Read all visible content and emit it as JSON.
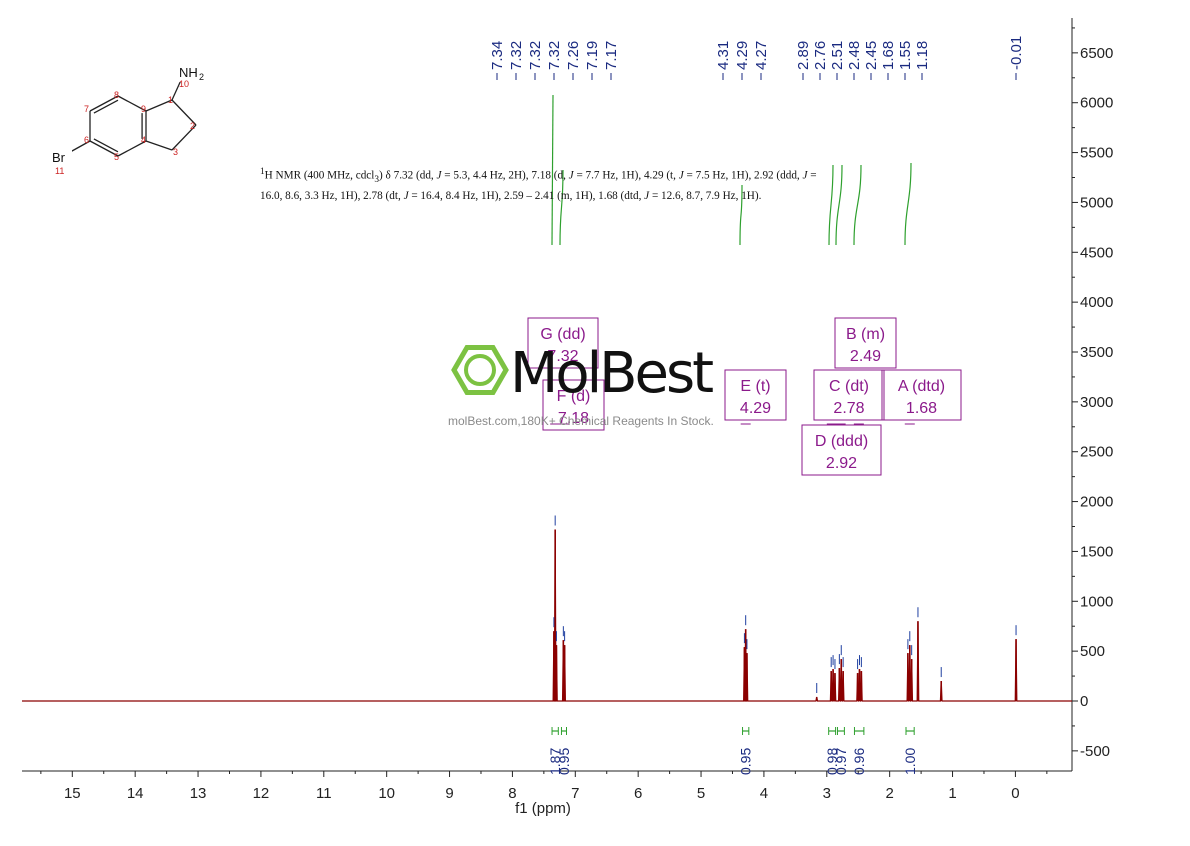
{
  "chart_data": {
    "type": "line",
    "xlabel": "f1 (ppm)",
    "ylabel": "",
    "xlim": [
      15.8,
      -0.9
    ],
    "ylim": [
      -700,
      6800
    ],
    "x_ticks": [
      "15",
      "14",
      "13",
      "12",
      "11",
      "10",
      "9",
      "8",
      "7",
      "6",
      "5",
      "4",
      "3",
      "2",
      "1",
      "0"
    ],
    "y_ticks": [
      "-500",
      "0",
      "500",
      "1000",
      "1500",
      "2000",
      "2500",
      "3000",
      "3500",
      "4000",
      "4500",
      "5000",
      "5500",
      "6000",
      "6500"
    ],
    "peak_labels": {
      "group1": [
        "7.34",
        "7.32",
        "7.32",
        "7.32",
        "7.26",
        "7.19",
        "7.17"
      ],
      "group2": [
        "4.31",
        "4.29",
        "4.27"
      ],
      "group3": [
        "2.89",
        "2.76",
        "2.51",
        "2.48",
        "2.45",
        "1.68",
        "1.55",
        "1.18"
      ],
      "group4": [
        "-0.01"
      ]
    },
    "series": [
      {
        "peaks": [
          {
            "x": 7.34,
            "y": 700
          },
          {
            "x": 7.32,
            "y": 1720
          },
          {
            "x": 7.3,
            "y": 560
          },
          {
            "x": 7.19,
            "y": 610
          },
          {
            "x": 7.17,
            "y": 560
          },
          {
            "x": 4.31,
            "y": 540
          },
          {
            "x": 4.29,
            "y": 720
          },
          {
            "x": 4.27,
            "y": 480
          },
          {
            "x": 3.16,
            "y": 40
          },
          {
            "x": 2.93,
            "y": 300
          },
          {
            "x": 2.9,
            "y": 320
          },
          {
            "x": 2.87,
            "y": 280
          },
          {
            "x": 2.8,
            "y": 330
          },
          {
            "x": 2.77,
            "y": 420
          },
          {
            "x": 2.74,
            "y": 300
          },
          {
            "x": 2.51,
            "y": 280
          },
          {
            "x": 2.48,
            "y": 320
          },
          {
            "x": 2.45,
            "y": 300
          },
          {
            "x": 1.71,
            "y": 480
          },
          {
            "x": 1.68,
            "y": 560
          },
          {
            "x": 1.65,
            "y": 420
          },
          {
            "x": 1.55,
            "y": 800
          },
          {
            "x": 1.18,
            "y": 200
          },
          {
            "x": -0.01,
            "y": 620
          }
        ]
      }
    ],
    "multiplets": [
      {
        "label": "G (dd)",
        "shift": "7.32",
        "x": 7.32
      },
      {
        "label": "F (d)",
        "shift": "7.18",
        "x": 7.18
      },
      {
        "label": "E (t)",
        "shift": "4.29",
        "x": 4.29
      },
      {
        "label": "D (ddd)",
        "shift": "2.92",
        "x": 2.92
      },
      {
        "label": "C (dt)",
        "shift": "2.78",
        "x": 2.78
      },
      {
        "label": "B (m)",
        "shift": "2.49",
        "x": 2.49
      },
      {
        "label": "A (dtd)",
        "shift": "1.68",
        "x": 1.68
      }
    ],
    "integrals": [
      {
        "value": "1.87",
        "x1": 7.37,
        "x2": 7.27
      },
      {
        "value": "0.95",
        "x1": 7.22,
        "x2": 7.14
      },
      {
        "value": "0.95",
        "x1": 4.34,
        "x2": 4.24
      },
      {
        "value": "0.98",
        "x1": 2.97,
        "x2": 2.86
      },
      {
        "value": "0.97",
        "x1": 2.83,
        "x2": 2.72
      },
      {
        "value": "0.96",
        "x1": 2.56,
        "x2": 2.41
      },
      {
        "value": "1.00",
        "x1": 1.74,
        "x2": 1.61
      }
    ]
  },
  "nmr_description": {
    "sup": "1",
    "line1": "H NMR (400 MHz, cdcl",
    "sub": "3",
    "line2": ") δ 7.32 (dd, ",
    "J": "J",
    "seg1": " = 5.3, 4.4 Hz, 2H), 7.18 (d, ",
    "seg2": " = 7.7 Hz, 1H), 4.29 (t, ",
    "seg3": " = 7.5 Hz, 1H), 2.92 (ddd, ",
    "seg4": " = 16.0, 8.6, 3.3 Hz, 1H), 2.78 (dt, ",
    "seg5": " = 16.4, 8.4 Hz, 1H), 2.59 – 2.41 (m, 1H), 1.68 (dtd, ",
    "seg6": " = 12.6, 8.7, 7.9 Hz, 1H)."
  },
  "molecule": {
    "amine_label": "NH",
    "amine_sub": "2",
    "bromine_label": "Br",
    "atom_numbers": [
      "1",
      "2",
      "3",
      "4",
      "5",
      "6",
      "7",
      "8",
      "9",
      "10",
      "11"
    ]
  },
  "watermark": {
    "brand": "MolBest",
    "url": "molBest.com,180K+ Chemical Reagents In Stock."
  },
  "colors": {
    "spectrum": "#8b0000",
    "integral": "#2ea02e",
    "peak_tick": "#1e3fa0",
    "axis": "#222222",
    "label_box": "#8b1a8b",
    "atom_number": "#cc2222",
    "logo": "#7cc242"
  }
}
